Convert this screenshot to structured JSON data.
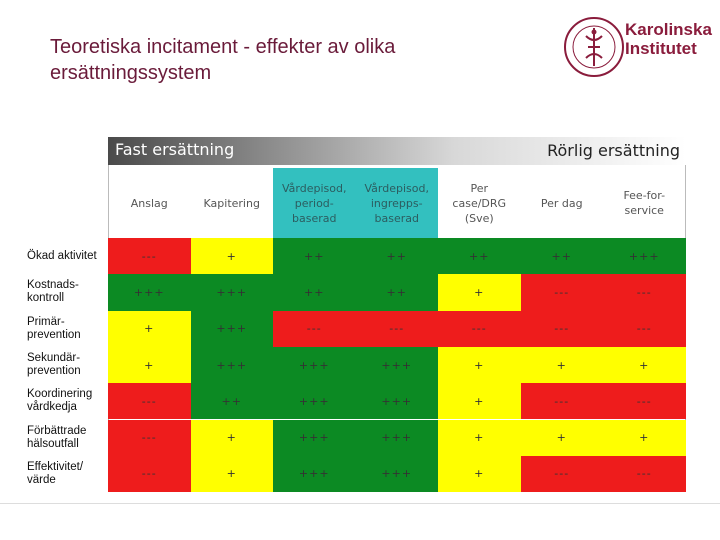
{
  "slide": {
    "title": "Teoretiska incitament - effekter av olika ersättningssystem",
    "logo_text_line1": "Karolinska",
    "logo_text_line2": "Institutet"
  },
  "banner": {
    "left_label": "Fast ersättning",
    "right_label": "Rörlig ersättning"
  },
  "columns": [
    {
      "label": "Anslag",
      "teal": false
    },
    {
      "label": "Kapitering",
      "teal": false
    },
    {
      "label": "Vårdepisod, period-baserad",
      "teal": true
    },
    {
      "label": "Vårdepisod, ingrepps-baserad",
      "teal": true
    },
    {
      "label": "Per case/DRG (Sve)",
      "teal": false
    },
    {
      "label": "Per dag",
      "teal": false
    },
    {
      "label": "Fee-for-service",
      "teal": false
    }
  ],
  "colors": {
    "red": "#ee1c1c",
    "yellow": "#ffff00",
    "green": "#0c8a23",
    "teal": "#33c0bf",
    "title": "#6a1b3a",
    "brand": "#8a1c3c"
  },
  "rows": [
    {
      "label": "Ökad aktivitet",
      "cells": [
        {
          "v": "---",
          "c": "red"
        },
        {
          "v": "+",
          "c": "yellow"
        },
        {
          "v": "++",
          "c": "green"
        },
        {
          "v": "++",
          "c": "green"
        },
        {
          "v": "++",
          "c": "green"
        },
        {
          "v": "++",
          "c": "green"
        },
        {
          "v": "+++",
          "c": "green"
        }
      ]
    },
    {
      "label": "Kostnads-kontroll",
      "cells": [
        {
          "v": "+++",
          "c": "green"
        },
        {
          "v": "+++",
          "c": "green"
        },
        {
          "v": "++",
          "c": "green"
        },
        {
          "v": "++",
          "c": "green"
        },
        {
          "v": "+",
          "c": "yellow"
        },
        {
          "v": "---",
          "c": "red"
        },
        {
          "v": "---",
          "c": "red"
        }
      ]
    },
    {
      "label": "Primär-prevention",
      "cells": [
        {
          "v": "+",
          "c": "yellow"
        },
        {
          "v": "+++",
          "c": "green"
        },
        {
          "v": "---",
          "c": "red"
        },
        {
          "v": "---",
          "c": "red"
        },
        {
          "v": "---",
          "c": "red"
        },
        {
          "v": "---",
          "c": "red"
        },
        {
          "v": "---",
          "c": "red"
        }
      ]
    },
    {
      "label": "Sekundär-prevention",
      "cells": [
        {
          "v": "+",
          "c": "yellow"
        },
        {
          "v": "+++",
          "c": "green"
        },
        {
          "v": "+++",
          "c": "green"
        },
        {
          "v": "+++",
          "c": "green"
        },
        {
          "v": "+",
          "c": "yellow"
        },
        {
          "v": "+",
          "c": "yellow"
        },
        {
          "v": "+",
          "c": "yellow"
        }
      ]
    },
    {
      "label": "Koordinering vårdkedja",
      "cells": [
        {
          "v": "---",
          "c": "red"
        },
        {
          "v": "++",
          "c": "green"
        },
        {
          "v": "+++",
          "c": "green"
        },
        {
          "v": "+++",
          "c": "green"
        },
        {
          "v": "+",
          "c": "yellow"
        },
        {
          "v": "---",
          "c": "red"
        },
        {
          "v": "---",
          "c": "red"
        }
      ]
    },
    {
      "label": "Förbättrade hälsoutfall",
      "cells": [
        {
          "v": "---",
          "c": "red"
        },
        {
          "v": "+",
          "c": "yellow"
        },
        {
          "v": "+++",
          "c": "green"
        },
        {
          "v": "+++",
          "c": "green"
        },
        {
          "v": "+",
          "c": "yellow"
        },
        {
          "v": "+",
          "c": "yellow"
        },
        {
          "v": "+",
          "c": "yellow"
        }
      ]
    },
    {
      "label": "Effektivitet/ värde",
      "cells": [
        {
          "v": "---",
          "c": "red"
        },
        {
          "v": "+",
          "c": "yellow"
        },
        {
          "v": "+++",
          "c": "green"
        },
        {
          "v": "+++",
          "c": "green"
        },
        {
          "v": "+",
          "c": "yellow"
        },
        {
          "v": "---",
          "c": "red"
        },
        {
          "v": "---",
          "c": "red"
        }
      ]
    }
  ]
}
